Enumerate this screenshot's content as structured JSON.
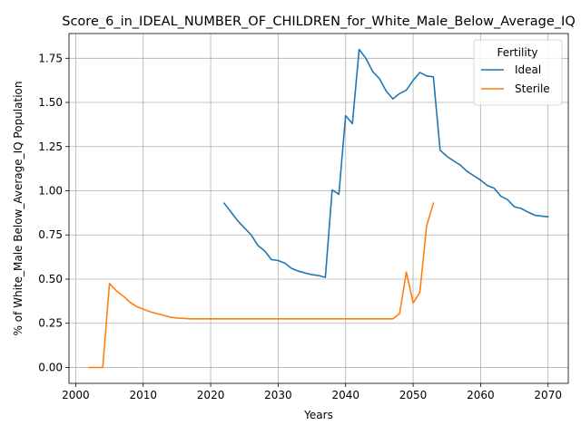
{
  "chart_data": {
    "type": "line",
    "title": "Score_6_in_IDEAL_NUMBER_OF_CHILDREN_for_White_Male_Below_Average_IQ",
    "xlabel": "Years",
    "ylabel": "% of White_Male Below_Average_IQ Population",
    "xlim": [
      1999,
      2073
    ],
    "ylim": [
      -0.09,
      1.89
    ],
    "xticks": [
      2000,
      2010,
      2020,
      2030,
      2040,
      2050,
      2060,
      2070
    ],
    "yticks": [
      0.0,
      0.25,
      0.5,
      0.75,
      1.0,
      1.25,
      1.5,
      1.75
    ],
    "grid": true,
    "legend": {
      "title": "Fertility",
      "position": "top-right"
    },
    "series": [
      {
        "name": "Ideal",
        "color": "#1f77b4",
        "x": [
          2022,
          2023,
          2024,
          2025,
          2026,
          2027,
          2028,
          2029,
          2030,
          2031,
          2032,
          2033,
          2034,
          2035,
          2036,
          2037,
          2038,
          2039,
          2040,
          2041,
          2042,
          2043,
          2044,
          2045,
          2046,
          2047,
          2048,
          2049,
          2050,
          2051,
          2052,
          2053,
          2054,
          2055,
          2056,
          2057,
          2058,
          2059,
          2060,
          2061,
          2062,
          2063,
          2064,
          2065,
          2066,
          2067,
          2068,
          2069,
          2070
        ],
        "y": [
          0.93,
          0.88,
          0.83,
          0.79,
          0.75,
          0.69,
          0.66,
          0.61,
          0.605,
          0.59,
          0.56,
          0.545,
          0.535,
          0.525,
          0.52,
          0.51,
          1.005,
          0.98,
          1.425,
          1.38,
          1.8,
          1.75,
          1.675,
          1.635,
          1.565,
          1.52,
          1.55,
          1.57,
          1.625,
          1.67,
          1.65,
          1.645,
          1.23,
          1.195,
          1.17,
          1.145,
          1.11,
          1.085,
          1.06,
          1.03,
          1.015,
          0.97,
          0.95,
          0.91,
          0.9,
          0.88,
          0.862,
          0.857,
          0.853
        ]
      },
      {
        "name": "Sterile",
        "color": "#ff7f0e",
        "x": [
          2002,
          2003,
          2004,
          2005,
          2006,
          2007,
          2008,
          2009,
          2010,
          2011,
          2012,
          2013,
          2014,
          2015,
          2016,
          2017,
          2018,
          2019,
          2020,
          2021,
          2022,
          2023,
          2024,
          2025,
          2026,
          2027,
          2028,
          2029,
          2030,
          2031,
          2032,
          2033,
          2034,
          2035,
          2036,
          2037,
          2038,
          2039,
          2040,
          2041,
          2042,
          2043,
          2044,
          2045,
          2046,
          2047,
          2048,
          2049,
          2050,
          2051,
          2052,
          2053
        ],
        "y": [
          0.0,
          0.0,
          0.0,
          0.475,
          0.435,
          0.405,
          0.37,
          0.345,
          0.33,
          0.315,
          0.305,
          0.295,
          0.285,
          0.28,
          0.278,
          0.275,
          0.275,
          0.275,
          0.275,
          0.275,
          0.275,
          0.275,
          0.275,
          0.275,
          0.275,
          0.275,
          0.275,
          0.275,
          0.275,
          0.275,
          0.275,
          0.275,
          0.275,
          0.275,
          0.275,
          0.275,
          0.275,
          0.275,
          0.275,
          0.275,
          0.275,
          0.275,
          0.275,
          0.275,
          0.275,
          0.275,
          0.305,
          0.54,
          0.365,
          0.425,
          0.8,
          0.93
        ]
      }
    ]
  }
}
